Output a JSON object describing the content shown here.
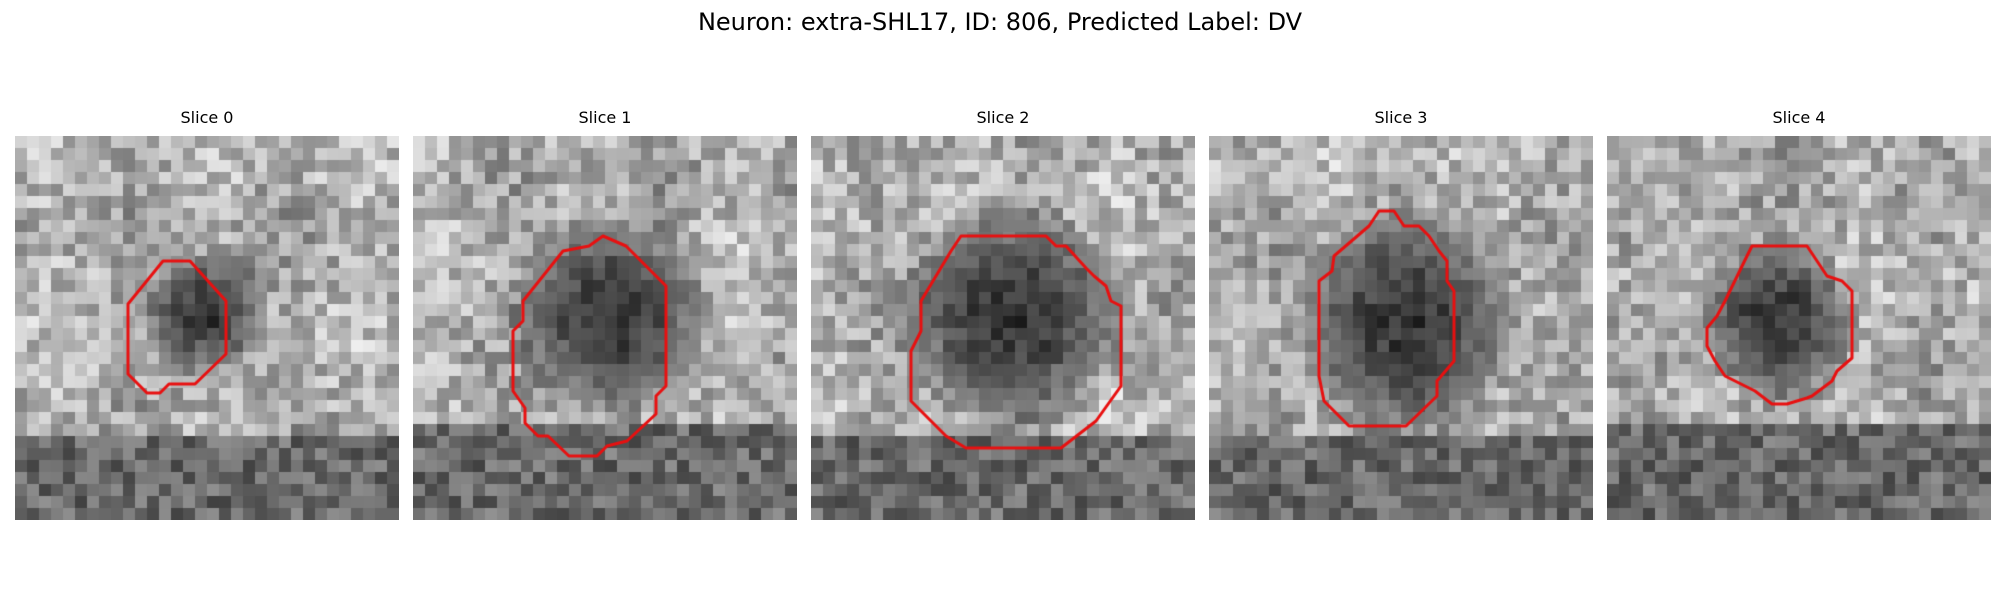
{
  "figure": {
    "title": "Neuron: extra-SHL17, ID: 806, Predicted Label: DV"
  },
  "contour_color": "#e81010",
  "panels": [
    {
      "title": "Slice 0",
      "content": "Noisy grayscale microscopy patch showing a small dark blob outlined by a red contour"
    },
    {
      "title": "Slice 1",
      "content": "Noisy grayscale microscopy patch showing a large dark blob outlined by a red contour"
    },
    {
      "title": "Slice 2",
      "content": "Noisy grayscale microscopy patch showing a large dark blob outlined by a red contour"
    },
    {
      "title": "Slice 3",
      "content": "Noisy grayscale microscopy patch showing a large dark blob outlined by a red contour"
    },
    {
      "title": "Slice 4",
      "content": "Noisy grayscale microscopy patch showing a medium dark blob outlined by a red contour"
    }
  ]
}
